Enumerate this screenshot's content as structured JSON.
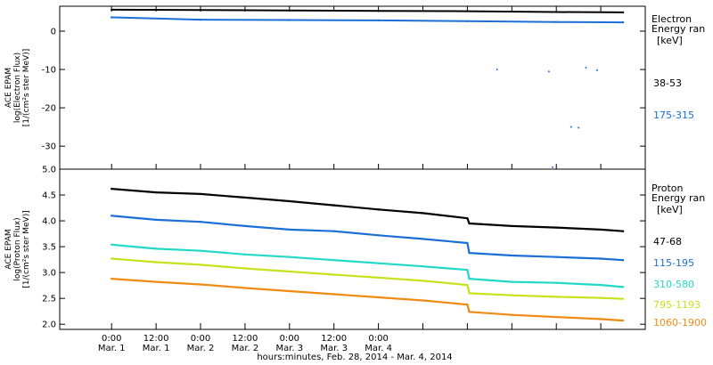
{
  "chart_data": [
    {
      "type": "scatter",
      "title": "",
      "ylabel_lines": [
        "ACE EPAM",
        "log(Electron Flux)",
        "[1/(cm²s ster MeV)]"
      ],
      "ylim": [
        -36,
        6.5
      ],
      "yticks": [
        0,
        -10,
        -20,
        -30
      ],
      "yticks_text": [
        "0",
        "-10",
        "-20",
        "-30"
      ],
      "legend_title_lines": [
        "Electron",
        "Energy ran",
        "[keV]"
      ],
      "series": [
        {
          "name": "38-53",
          "color": "#000000",
          "x": [
            0,
            24,
            48,
            72,
            96,
            120,
            138
          ],
          "y": [
            5.6,
            5.5,
            5.4,
            5.3,
            5.2,
            5.0,
            4.9
          ]
        },
        {
          "name": "175-315",
          "color": "#1a6fd6",
          "x": [
            0,
            24,
            48,
            72,
            96,
            120,
            138
          ],
          "y": [
            3.6,
            3.0,
            2.9,
            2.8,
            2.6,
            2.4,
            2.3
          ]
        }
      ],
      "outliers": [
        {
          "series": "175-315",
          "x": 104,
          "y": -10
        },
        {
          "series": "175-315",
          "x": 118,
          "y": -10.5
        },
        {
          "series": "175-315",
          "x": 128,
          "y": -9.5
        },
        {
          "series": "175-315",
          "x": 131,
          "y": -10.2
        },
        {
          "series": "175-315",
          "x": 124,
          "y": -25
        },
        {
          "series": "175-315",
          "x": 126,
          "y": -25.2
        },
        {
          "series": "175-315",
          "x": 119,
          "y": -35.5
        }
      ]
    },
    {
      "type": "scatter",
      "title": "",
      "ylabel_lines": [
        "ACE EPAM",
        "log(Proton Flux)",
        "[1/(cm²s ster MeV)]"
      ],
      "ylim": [
        1.9,
        5.0
      ],
      "yticks": [
        2.0,
        2.5,
        3.0,
        3.5,
        4.0,
        4.5,
        5.0
      ],
      "yticks_text": [
        "2.0",
        "2.5",
        "3.0",
        "3.5",
        "4.0",
        "4.5",
        "5.0"
      ],
      "legend_title_lines": [
        "Proton",
        "Energy ran",
        "[keV]"
      ],
      "series": [
        {
          "name": "47-68",
          "color": "#000000",
          "x": [
            0,
            12,
            24,
            36,
            48,
            60,
            72,
            84,
            96,
            96.5,
            108,
            120,
            132,
            138
          ],
          "y": [
            4.62,
            4.55,
            4.52,
            4.45,
            4.38,
            4.3,
            4.22,
            4.15,
            4.05,
            3.95,
            3.9,
            3.87,
            3.83,
            3.8
          ]
        },
        {
          "name": "115-195",
          "color": "#1a6fd6",
          "x": [
            0,
            12,
            24,
            36,
            48,
            60,
            72,
            84,
            96,
            96.5,
            108,
            120,
            132,
            138
          ],
          "y": [
            4.1,
            4.02,
            3.98,
            3.9,
            3.83,
            3.8,
            3.72,
            3.65,
            3.57,
            3.38,
            3.33,
            3.3,
            3.27,
            3.24
          ]
        },
        {
          "name": "310-580",
          "color": "#22d8c8",
          "x": [
            0,
            12,
            24,
            36,
            48,
            60,
            72,
            84,
            96,
            96.5,
            108,
            120,
            132,
            138
          ],
          "y": [
            3.54,
            3.46,
            3.42,
            3.35,
            3.3,
            3.24,
            3.18,
            3.12,
            3.05,
            2.88,
            2.82,
            2.8,
            2.76,
            2.72
          ]
        },
        {
          "name": "795-1193",
          "color": "#c6e21c",
          "x": [
            0,
            12,
            24,
            36,
            48,
            60,
            72,
            84,
            96,
            96.5,
            108,
            120,
            132,
            138
          ],
          "y": [
            3.27,
            3.2,
            3.15,
            3.08,
            3.02,
            2.96,
            2.9,
            2.84,
            2.76,
            2.6,
            2.56,
            2.53,
            2.51,
            2.49
          ]
        },
        {
          "name": "1060-1900",
          "color": "#f08a14",
          "x": [
            0,
            12,
            24,
            36,
            48,
            60,
            72,
            84,
            96,
            96.5,
            108,
            120,
            132,
            138
          ],
          "y": [
            2.88,
            2.82,
            2.77,
            2.7,
            2.64,
            2.58,
            2.52,
            2.46,
            2.38,
            2.24,
            2.18,
            2.14,
            2.1,
            2.07
          ]
        }
      ]
    }
  ],
  "x_axis": {
    "xlim": [
      -14,
      144
    ],
    "ticks": [
      0,
      12,
      24,
      36,
      48,
      60,
      72,
      84,
      96,
      108,
      120,
      132,
      144
    ],
    "labels": [
      {
        "x": 0,
        "time": "0:00",
        "day": "Mar.  1"
      },
      {
        "x": 12,
        "time": "12:00",
        "day": "Mar.  1"
      },
      {
        "x": 24,
        "time": "0:00",
        "day": "Mar.  2"
      },
      {
        "x": 36,
        "time": "12:00",
        "day": "Mar.  2"
      },
      {
        "x": 48,
        "time": "0:00",
        "day": "Mar.  3"
      },
      {
        "x": 60,
        "time": "12:00",
        "day": "Mar.  3"
      },
      {
        "x": 72,
        "time": "0:00",
        "day": "Mar.  4"
      }
    ],
    "xlabel": "hours:minutes, Feb. 28, 2014 - Mar.  4, 2014"
  }
}
